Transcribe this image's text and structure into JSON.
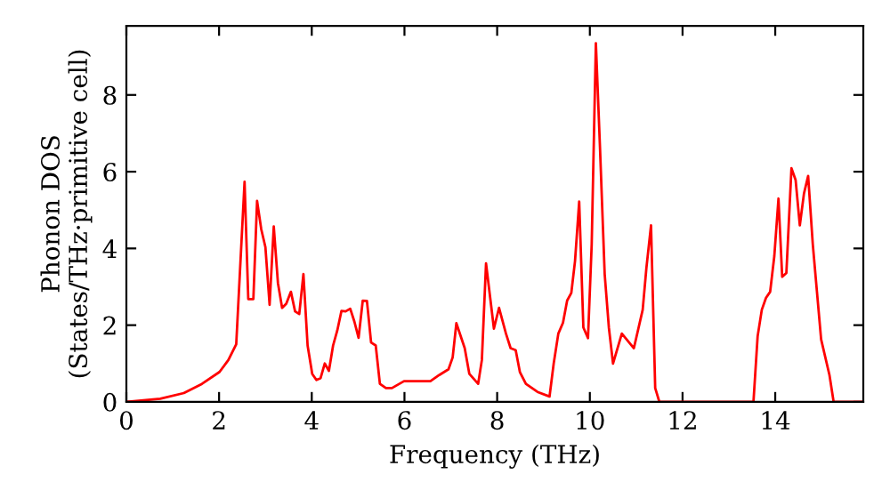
{
  "chart_data": {
    "type": "line",
    "xlabel": "Frequency (THz)",
    "ylabel": "Phonon DOS\n(States/THz·primitive cell)",
    "xlim": [
      0,
      15.9
    ],
    "ylim": [
      0,
      9.8
    ],
    "xticks": [
      0,
      2,
      4,
      6,
      8,
      10,
      12,
      14
    ],
    "yticks": [
      0,
      2,
      4,
      6,
      8
    ],
    "grid": false,
    "marker": "none",
    "line_style": "solid",
    "series": [
      {
        "color": "#ff0000",
        "x": [
          0,
          0.73,
          1.24,
          1.63,
          2.01,
          2.2,
          2.37,
          2.55,
          2.63,
          2.74,
          2.82,
          2.91,
          3.0,
          3.09,
          3.18,
          3.27,
          3.36,
          3.45,
          3.55,
          3.64,
          3.73,
          3.82,
          3.91,
          4.01,
          4.1,
          4.19,
          4.28,
          4.37,
          4.46,
          4.55,
          4.64,
          4.73,
          4.83,
          4.92,
          5.01,
          5.1,
          5.19,
          5.28,
          5.38,
          5.47,
          5.6,
          5.73,
          5.99,
          6.56,
          6.75,
          6.95,
          7.04,
          7.12,
          7.3,
          7.4,
          7.59,
          7.67,
          7.76,
          7.85,
          7.93,
          8.04,
          8.19,
          8.29,
          8.4,
          8.49,
          8.62,
          8.87,
          9.13,
          9.22,
          9.32,
          9.42,
          9.51,
          9.6,
          9.68,
          9.77,
          9.86,
          9.96,
          10.04,
          10.13,
          10.22,
          10.32,
          10.41,
          10.5,
          10.69,
          10.95,
          11.14,
          11.22,
          11.32,
          11.41,
          11.5,
          13.53,
          13.62,
          13.71,
          13.8,
          13.89,
          13.98,
          14.07,
          14.15,
          14.24,
          14.35,
          14.44,
          14.53,
          14.62,
          14.71,
          14.81,
          14.9,
          14.99,
          15.17,
          15.26,
          15.9
        ],
        "values": [
          0,
          0.08,
          0.23,
          0.47,
          0.78,
          1.09,
          1.5,
          5.74,
          2.68,
          2.68,
          5.24,
          4.5,
          4.03,
          2.53,
          4.57,
          3.1,
          2.45,
          2.56,
          2.87,
          2.36,
          2.29,
          3.33,
          1.47,
          0.73,
          0.57,
          0.62,
          1.0,
          0.81,
          1.47,
          1.86,
          2.37,
          2.36,
          2.43,
          2.09,
          1.67,
          2.64,
          2.63,
          1.55,
          1.47,
          0.47,
          0.36,
          0.36,
          0.54,
          0.54,
          0.7,
          0.85,
          1.16,
          2.05,
          1.4,
          0.73,
          0.47,
          1.09,
          3.61,
          2.71,
          1.91,
          2.45,
          1.78,
          1.4,
          1.35,
          0.78,
          0.47,
          0.26,
          0.14,
          1.0,
          1.78,
          2.06,
          2.64,
          2.84,
          3.67,
          5.22,
          1.94,
          1.66,
          4.11,
          9.35,
          6.59,
          3.33,
          1.94,
          1.0,
          1.78,
          1.4,
          2.4,
          3.49,
          4.6,
          0.36,
          0,
          0,
          1.71,
          2.4,
          2.71,
          2.87,
          3.8,
          5.3,
          3.26,
          3.36,
          6.09,
          5.78,
          4.6,
          5.43,
          5.89,
          4.11,
          2.87,
          1.63,
          0.7,
          0,
          0
        ]
      }
    ]
  }
}
